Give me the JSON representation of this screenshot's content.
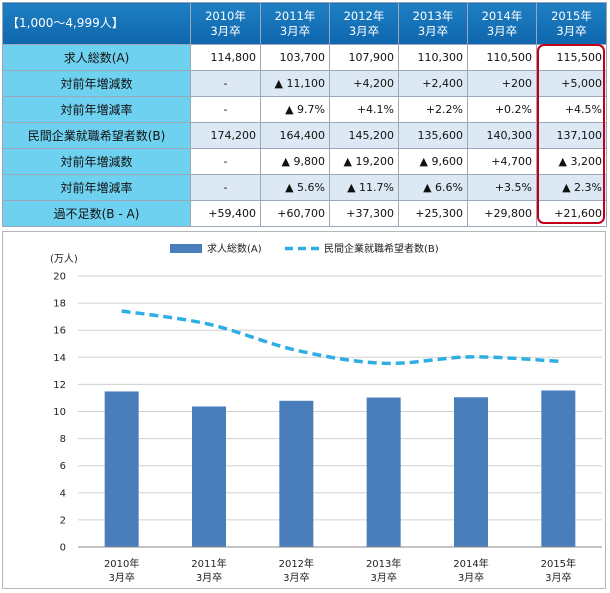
{
  "table": {
    "corner": "【1,000～4,999人】",
    "headers": [
      {
        "line1": "2010年",
        "line2": "3月卒"
      },
      {
        "line1": "2011年",
        "line2": "3月卒"
      },
      {
        "line1": "2012年",
        "line2": "3月卒"
      },
      {
        "line1": "2013年",
        "line2": "3月卒"
      },
      {
        "line1": "2014年",
        "line2": "3月卒"
      },
      {
        "line1": "2015年",
        "line2": "3月卒"
      }
    ],
    "rows": [
      {
        "label": "求人総数(A)",
        "values": [
          "114,800",
          "103,700",
          "107,900",
          "110,300",
          "110,500",
          "115,500"
        ]
      },
      {
        "label": "対前年増減数",
        "values": [
          "-",
          "▲ 11,100",
          "+4,200",
          "+2,400",
          "+200",
          "+5,000"
        ]
      },
      {
        "label": "対前年増減率",
        "values": [
          "-",
          "▲ 9.7%",
          "+4.1%",
          "+2.2%",
          "+0.2%",
          "+4.5%"
        ]
      },
      {
        "label": "民間企業就職希望者数(B)",
        "values": [
          "174,200",
          "164,400",
          "145,200",
          "135,600",
          "140,300",
          "137,100"
        ]
      },
      {
        "label": "対前年増減数",
        "values": [
          "-",
          "▲ 9,800",
          "▲ 19,200",
          "▲ 9,600",
          "+4,700",
          "▲ 3,200"
        ]
      },
      {
        "label": "対前年増減率",
        "values": [
          "-",
          "▲ 5.6%",
          "▲ 11.7%",
          "▲ 6.6%",
          "+3.5%",
          "▲ 2.3%"
        ]
      },
      {
        "label": "過不足数(B - A)",
        "values": [
          "+59,400",
          "+60,700",
          "+37,300",
          "+25,300",
          "+29,800",
          "+21,600"
        ]
      }
    ]
  },
  "chart_data": {
    "type": "bar",
    "categories": [
      {
        "line1": "2010年",
        "line2": "3月卒"
      },
      {
        "line1": "2011年",
        "line2": "3月卒"
      },
      {
        "line1": "2012年",
        "line2": "3月卒"
      },
      {
        "line1": "2013年",
        "line2": "3月卒"
      },
      {
        "line1": "2014年",
        "line2": "3月卒"
      },
      {
        "line1": "2015年",
        "line2": "3月卒"
      }
    ],
    "series": [
      {
        "name": "求人総数(A)",
        "kind": "bar",
        "color": "#4a7ebb",
        "values": [
          11.48,
          10.37,
          10.79,
          11.03,
          11.05,
          11.55
        ]
      },
      {
        "name": "民間企業就職希望者数(B)",
        "kind": "line",
        "style": "dashed",
        "color": "#2eaee4",
        "values": [
          17.42,
          16.44,
          14.52,
          13.56,
          14.03,
          13.71
        ]
      }
    ],
    "yunit": "(万人)",
    "ylim": [
      0,
      20
    ],
    "yticks": [
      "0",
      "2",
      "4",
      "6",
      "8",
      "10",
      "12",
      "14",
      "16",
      "18",
      "20"
    ],
    "grid": true,
    "legend": "top-center"
  }
}
